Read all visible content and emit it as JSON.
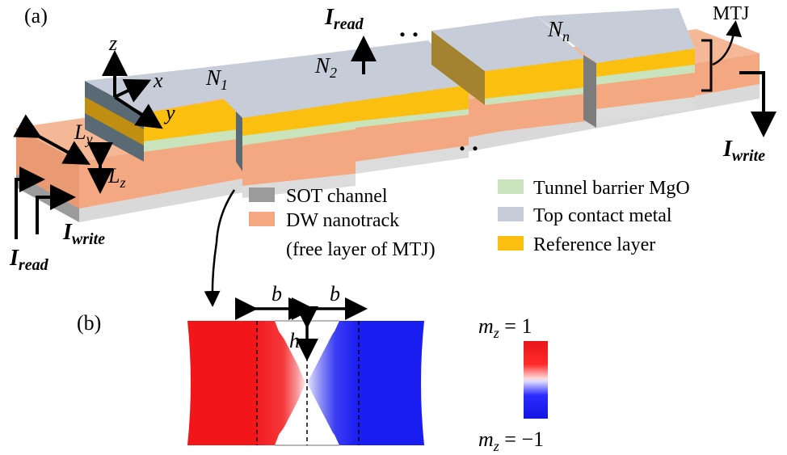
{
  "panel_labels": {
    "a": "(a)",
    "b": "(b)"
  },
  "axes": {
    "z": "z",
    "x": "x",
    "y": "y"
  },
  "segments": {
    "n1": "N",
    "n1_sub": "1",
    "n2": "N",
    "n2_sub": "2",
    "nn": "N",
    "nn_sub": "n"
  },
  "ellipsis": {
    "top": ". .",
    "bottom": ". ."
  },
  "currents": {
    "read_top_main": "I",
    "read_top_sub": "read",
    "write_right_main": "I",
    "write_right_sub": "write",
    "write_left_main": "I",
    "write_left_sub": "write",
    "read_left_main": "I",
    "read_left_sub": "read"
  },
  "mtj_label": "MTJ",
  "dimensions": {
    "ly_main": "L",
    "ly_sub": "y",
    "lz_main": "L",
    "lz_sub": "z",
    "b1": "b",
    "b2": "b",
    "h": "h"
  },
  "legend": [
    {
      "text": "SOT channel",
      "color": "#9b9b9b"
    },
    {
      "text": "DW nanotrack",
      "color": "#f3a882"
    },
    {
      "text": "(free layer of MTJ)",
      "color": ""
    },
    {
      "text": "Tunnel barrier MgO",
      "color": "#c9e3bc"
    },
    {
      "text": "Top contact metal",
      "color": "#c6ccd8"
    },
    {
      "text": "Reference layer",
      "color": "#fbbf0f"
    }
  ],
  "colorbar": {
    "top_main": "m",
    "top_sub": "z",
    "top_eq": " = 1",
    "bottom_main": "m",
    "bottom_sub": "z",
    "bottom_eq": " = −1"
  },
  "colors": {
    "red": "#f2151a",
    "blue": "#1a1df0",
    "sot": "#9b9b9b",
    "dw": "#f3a882",
    "mgo": "#c9e3bc",
    "top": "#c6ccd8",
    "ref": "#fbbf0f"
  }
}
